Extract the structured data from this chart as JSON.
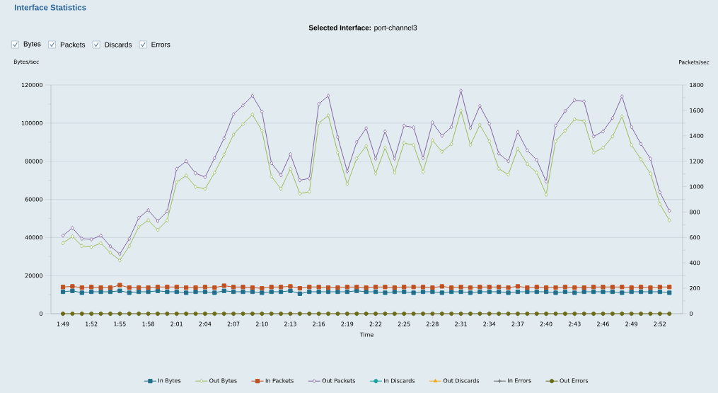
{
  "chart_data": {
    "type": "line",
    "title": "Interface Statistics",
    "subtitle": "**Selected Interface:** port-channel3",
    "xlabel": "Time",
    "ylabel": "Bytes/sec",
    "y2label": "Packets/sec",
    "annotations": [
      "Bytes",
      "Packets",
      "Discards",
      "Errors"
    ],
    "categories": [
      "1:49",
      null,
      null,
      "1:52",
      null,
      null,
      "1:55",
      null,
      null,
      "1:58",
      null,
      null,
      "2:01",
      null,
      null,
      "2:04",
      null,
      null,
      "2:07",
      null,
      null,
      "2:10",
      null,
      null,
      "2:13",
      null,
      null,
      "2:16",
      null,
      null,
      "2:19",
      null,
      null,
      "2:22",
      null,
      null,
      "2:25",
      null,
      null,
      "2:28",
      null,
      null,
      "2:31",
      null,
      null,
      "2:34",
      null,
      null,
      "2:37",
      null,
      null,
      "2:40",
      null,
      null,
      "2:43",
      null,
      null,
      "2:46",
      null,
      null,
      "2:49",
      null,
      null,
      "2:52",
      null
    ],
    "ylim": [
      0,
      120000
    ],
    "yticks": [
      0,
      {
        "value": 10000,
        "label": null
      },
      20000,
      {
        "value": 30000,
        "label": null
      },
      40000,
      {
        "value": 50000,
        "label": null
      },
      60000,
      {
        "value": 70000,
        "label": null
      },
      80000,
      {
        "value": 90000,
        "label": null
      },
      100000,
      {
        "value": 110000,
        "label": null
      },
      120000
    ],
    "y2lim": [
      0,
      1800
    ],
    "y2ticks": [
      0,
      {
        "value": 100,
        "label": null
      },
      200,
      {
        "value": 300,
        "label": null
      },
      400,
      {
        "value": 500,
        "label": null
      },
      600,
      {
        "value": 700,
        "label": null
      },
      800,
      {
        "value": 900,
        "label": null
      },
      1000,
      {
        "value": 1100,
        "label": null
      },
      1200,
      {
        "value": 1300,
        "label": null
      },
      1400,
      {
        "value": 1500,
        "label": null
      },
      1600,
      {
        "value": 1700,
        "label": null
      },
      1800
    ],
    "grid": "y",
    "legend": "bottom",
    "series": [
      {
        "name": "In Bytes",
        "color": "#1f6f8b",
        "marker": "square",
        "values": [
          11500,
          12000,
          11000,
          11500,
          11500,
          11500,
          12000,
          11000,
          11500,
          11500,
          12000,
          11500,
          11500,
          11000,
          11500,
          11500,
          11000,
          12000,
          11500,
          11500,
          11500,
          11000,
          11500,
          11500,
          12000,
          10500,
          11500,
          11500,
          11500,
          11500,
          11500,
          12000,
          11500,
          11500,
          11000,
          11500,
          11500,
          11000,
          11500,
          11500,
          11000,
          11500,
          11500,
          11000,
          11500,
          11500,
          11500,
          11000,
          11500,
          11500,
          11500,
          11500,
          11000,
          11500,
          11000,
          11500,
          11500,
          11500,
          11500,
          11000,
          11500,
          11500,
          11500,
          11500,
          11000
        ]
      },
      {
        "name": "Out Bytes",
        "color": "#9bbb59",
        "marker": "diamond",
        "values": [
          37000,
          40500,
          35500,
          35000,
          37000,
          32000,
          28000,
          35500,
          45500,
          49000,
          44000,
          49000,
          69000,
          72500,
          66500,
          65500,
          74000,
          83500,
          94000,
          99500,
          104500,
          96000,
          72000,
          65500,
          76000,
          63000,
          64000,
          100000,
          104000,
          84500,
          68000,
          81500,
          88000,
          73500,
          87000,
          74000,
          89500,
          88500,
          74500,
          91000,
          85000,
          89000,
          106500,
          88500,
          99000,
          90500,
          76000,
          73000,
          86500,
          78500,
          74000,
          62500,
          90500,
          96000,
          102000,
          101000,
          84500,
          87000,
          93000,
          103500,
          88500,
          81000,
          73500,
          57500,
          49000
        ]
      },
      {
        "name": "In Packets",
        "color": "#c0501f",
        "marker": "square",
        "axis": "y2",
        "values": [
          210,
          215,
          205,
          210,
          205,
          205,
          225,
          205,
          205,
          205,
          210,
          210,
          210,
          205,
          205,
          210,
          205,
          220,
          210,
          210,
          205,
          200,
          210,
          210,
          215,
          200,
          210,
          210,
          205,
          205,
          210,
          210,
          205,
          210,
          210,
          205,
          210,
          210,
          210,
          205,
          215,
          205,
          210,
          205,
          210,
          210,
          210,
          205,
          215,
          205,
          210,
          205,
          205,
          210,
          205,
          205,
          210,
          210,
          210,
          210,
          205,
          210,
          205,
          210,
          210
        ]
      },
      {
        "name": "Out Packets",
        "color": "#8064a2",
        "marker": "diamond",
        "axis": "y2",
        "values": [
          615,
          675,
          590,
          585,
          615,
          530,
          470,
          590,
          755,
          815,
          730,
          805,
          1140,
          1200,
          1105,
          1075,
          1225,
          1380,
          1570,
          1640,
          1715,
          1590,
          1185,
          1090,
          1255,
          1050,
          1065,
          1650,
          1715,
          1390,
          1120,
          1350,
          1460,
          1220,
          1435,
          1220,
          1480,
          1465,
          1225,
          1505,
          1400,
          1470,
          1755,
          1460,
          1635,
          1495,
          1260,
          1200,
          1430,
          1285,
          1210,
          1040,
          1480,
          1595,
          1680,
          1670,
          1395,
          1435,
          1540,
          1710,
          1470,
          1335,
          1220,
          955,
          810
        ]
      },
      {
        "name": "In Discards",
        "color": "#1aa3a3",
        "marker": "circle",
        "axis": "y2",
        "values": [
          null,
          null,
          null,
          null,
          null,
          null,
          null,
          null,
          null,
          null,
          null,
          null,
          null,
          null,
          null,
          null,
          null,
          null,
          null,
          null,
          null,
          null,
          null,
          null,
          null,
          null,
          null,
          null,
          null,
          null,
          null,
          null,
          null,
          null,
          null,
          null,
          null,
          null,
          null,
          null,
          null,
          null,
          null,
          null,
          null,
          null,
          null,
          null,
          null,
          null,
          null,
          null,
          null,
          null,
          null,
          null,
          null,
          null,
          null,
          null,
          null,
          null,
          null,
          null,
          null
        ]
      },
      {
        "name": "Out Discards",
        "color": "#f0a81c",
        "marker": "triangle",
        "axis": "y2",
        "values": [
          null,
          null,
          null,
          null,
          null,
          null,
          null,
          null,
          null,
          null,
          null,
          null,
          null,
          null,
          null,
          null,
          null,
          null,
          null,
          null,
          null,
          null,
          null,
          null,
          null,
          null,
          null,
          null,
          null,
          null,
          null,
          null,
          null,
          null,
          null,
          null,
          null,
          null,
          null,
          null,
          null,
          null,
          null,
          null,
          null,
          null,
          null,
          null,
          null,
          null,
          null,
          null,
          null,
          null,
          null,
          null,
          null,
          null,
          null,
          null,
          null,
          null,
          null,
          null,
          null
        ]
      },
      {
        "name": "In Errors",
        "color": "#6a6a6a",
        "marker": "cross",
        "axis": "y2",
        "values": [
          null,
          null,
          null,
          null,
          null,
          null,
          null,
          null,
          null,
          null,
          null,
          null,
          null,
          null,
          null,
          null,
          null,
          null,
          null,
          null,
          null,
          null,
          null,
          null,
          null,
          null,
          null,
          null,
          null,
          null,
          null,
          null,
          null,
          null,
          null,
          null,
          null,
          null,
          null,
          null,
          null,
          null,
          null,
          null,
          null,
          null,
          null,
          null,
          null,
          null,
          null,
          null,
          null,
          null,
          null,
          null,
          null,
          null,
          null,
          null,
          null,
          null,
          null,
          null,
          null
        ]
      },
      {
        "name": "Out Errors",
        "color": "#6b6b1a",
        "marker": "circle",
        "axis": "y2",
        "values": [
          0,
          0,
          0,
          0,
          0,
          0,
          0,
          0,
          0,
          0,
          0,
          0,
          0,
          0,
          0,
          0,
          0,
          0,
          0,
          0,
          0,
          0,
          0,
          0,
          0,
          0,
          0,
          0,
          0,
          0,
          0,
          0,
          0,
          0,
          0,
          0,
          0,
          0,
          0,
          0,
          0,
          0,
          0,
          0,
          0,
          0,
          0,
          0,
          0,
          0,
          0,
          0,
          0,
          0,
          0,
          0,
          0,
          0,
          0,
          0,
          0,
          0,
          0,
          0,
          0
        ]
      }
    ]
  }
}
